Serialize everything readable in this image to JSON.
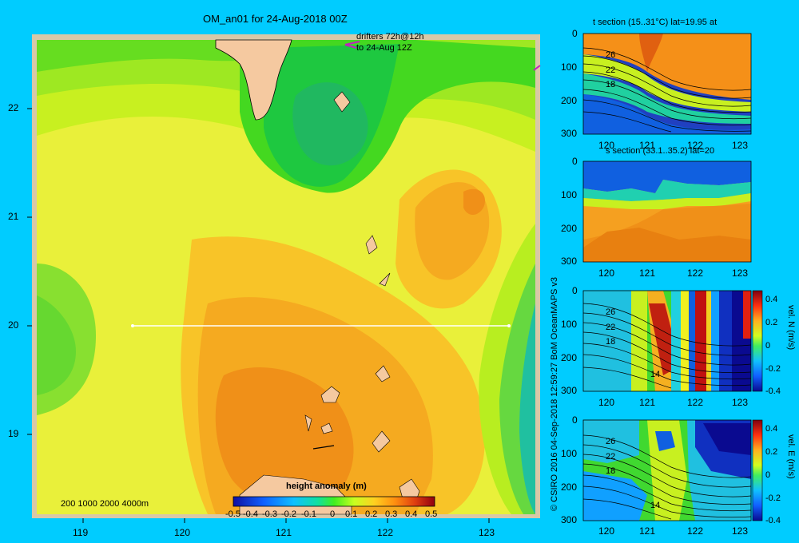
{
  "main_map": {
    "title": "OM_an01 for 24-Aug-2018 00Z",
    "drifters_line1": "drifters 72h@12h",
    "drifters_line2": "to 24-Aug 12Z",
    "x_ticks": [
      "119",
      "120",
      "121",
      "122",
      "123"
    ],
    "y_ticks": [
      "22",
      "21",
      "20",
      "19"
    ],
    "depth_legend": "200  1000  2000  4000m",
    "colorbar_title": "height anomaly (m)",
    "colorbar_ticks": [
      "-0.5",
      "-0.4",
      "-0.3",
      "-0.2",
      "-0.1",
      "0",
      "0.1",
      "0.2",
      "0.3",
      "0.4",
      "0.5"
    ],
    "section_line": {
      "lat": 20,
      "lon_start": 119.5,
      "lon_end": 123.2
    }
  },
  "panels": [
    {
      "title": "t section (15..31°C) lat=19.95 at",
      "y_ticks": [
        "0",
        "100",
        "200",
        "300"
      ],
      "x_ticks": [
        "120",
        "121",
        "122",
        "123"
      ],
      "contour_labels": [
        "26",
        "22",
        "18"
      ]
    },
    {
      "title": "s section (33.1..35.2) lat=20",
      "y_ticks": [
        "0",
        "100",
        "200",
        "300"
      ],
      "x_ticks": [
        "120",
        "121",
        "122",
        "123"
      ],
      "contour_labels": []
    },
    {
      "title": "",
      "y_ticks": [
        "0",
        "100",
        "200",
        "300"
      ],
      "x_ticks": [
        "120",
        "121",
        "122",
        "123"
      ],
      "contour_labels": [
        "26",
        "22",
        "18",
        "14"
      ],
      "cbar_label": "vel. N (m/s)",
      "cbar_ticks": [
        "0.4",
        "0.2",
        "0",
        "-0.2",
        "-0.4"
      ]
    },
    {
      "title": "",
      "y_ticks": [
        "0",
        "100",
        "200",
        "300"
      ],
      "x_ticks": [
        "120",
        "121",
        "122",
        "123"
      ],
      "contour_labels": [
        "26",
        "22",
        "18",
        "14"
      ],
      "cbar_label": "vel. E (m/s)",
      "cbar_ticks": [
        "0.4",
        "0.2",
        "0",
        "-0.2",
        "-0.4"
      ]
    }
  ],
  "credit": "© CSIRO 2016   04-Sep-2018 12:59:27 BoM OceanMAPS v3",
  "colors": {
    "background": "#00ccff",
    "land": "#f5c9a0"
  }
}
